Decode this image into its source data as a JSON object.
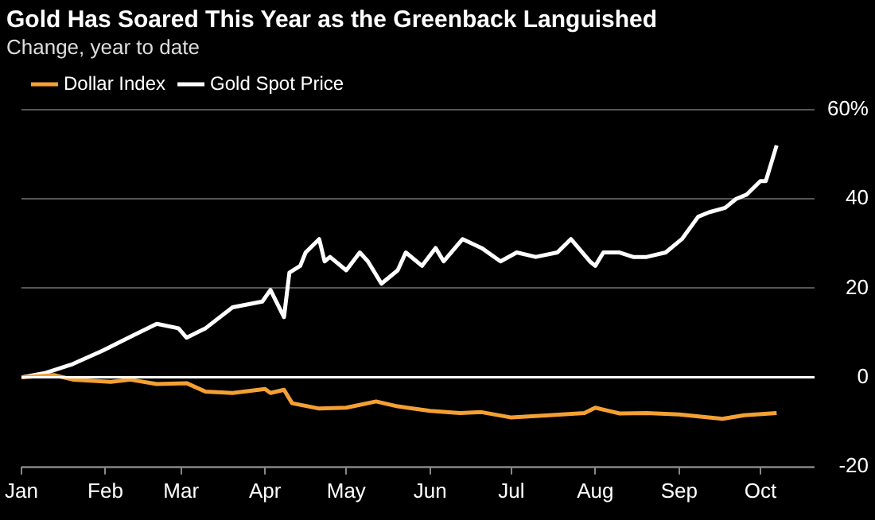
{
  "chart_data": {
    "type": "line",
    "title": "Gold Has Soared This Year as the Greenback Languished",
    "subtitle": "Change, year to date",
    "xlim": [
      "--01-01",
      "--10-21"
    ],
    "xticks": [
      {
        "value": "--01-01",
        "label": "Jan"
      },
      {
        "value": "--02-01",
        "label": "Feb"
      },
      {
        "value": "--03-01",
        "label": "Mar"
      },
      {
        "value": "--04-01",
        "label": "Apr"
      },
      {
        "value": "--05-01",
        "label": "May"
      },
      {
        "value": "--06-01",
        "label": "Jun"
      },
      {
        "value": "--07-01",
        "label": "Jul"
      },
      {
        "value": "--08-01",
        "label": "Aug"
      },
      {
        "value": "--09-01",
        "label": "Sep"
      },
      {
        "value": "--10-01",
        "label": "Oct"
      }
    ],
    "ylim": [
      -20,
      60
    ],
    "yticks": [
      -20,
      0,
      20,
      40,
      {
        "value": 60,
        "label": "60%"
      }
    ],
    "grid": "y",
    "legend": "top left",
    "marker": "none",
    "line_style": "solid",
    "ref_lines": [
      {
        "axis": "y",
        "value": 0,
        "color": "#ffffff"
      }
    ],
    "series": [
      {
        "name": "Dollar Index",
        "color": "#f5a033",
        "x": [
          "--01-01",
          "--01-13",
          "--01-20",
          "--02-03",
          "--02-10",
          "--02-20",
          "--03-03",
          "--03-10",
          "--03-20",
          "--04-01",
          "--04-03",
          "--04-08",
          "--04-11",
          "--04-21",
          "--05-01",
          "--05-12",
          "--05-20",
          "--06-01",
          "--06-12",
          "--06-20",
          "--07-01",
          "--07-15",
          "--07-28",
          "--08-01",
          "--08-10",
          "--08-20",
          "--09-01",
          "--09-17",
          "--09-25",
          "--10-07"
        ],
        "values": [
          0,
          0.5,
          -0.5,
          -1,
          -0.5,
          -1.5,
          -1.3,
          -3.2,
          -3.5,
          -2.6,
          -3.5,
          -2.8,
          -5.8,
          -7,
          -6.8,
          -5.4,
          -6.5,
          -7.5,
          -8,
          -7.8,
          -9,
          -8.5,
          -8,
          -6.8,
          -8.1,
          -8,
          -8.3,
          -9.3,
          -8.5,
          -8
        ]
      },
      {
        "name": "Gold Spot Price",
        "color": "#ffffff",
        "x": [
          "--01-01",
          "--01-10",
          "--01-20",
          "--01-31",
          "--02-10",
          "--02-20",
          "--02-28",
          "--03-03",
          "--03-10",
          "--03-20",
          "--03-31",
          "--04-03",
          "--04-08",
          "--04-10",
          "--04-14",
          "--04-16",
          "--04-21",
          "--04-23",
          "--04-25",
          "--05-01",
          "--05-06",
          "--05-09",
          "--05-14",
          "--05-20",
          "--05-23",
          "--05-29",
          "--06-03",
          "--06-06",
          "--06-13",
          "--06-20",
          "--06-27",
          "--07-03",
          "--07-10",
          "--07-18",
          "--07-23",
          "--07-30",
          "--08-01",
          "--08-04",
          "--08-10",
          "--08-15",
          "--08-20",
          "--08-27",
          "--09-02",
          "--09-08",
          "--09-12",
          "--09-18",
          "--09-22",
          "--09-26",
          "--10-01",
          "--10-03",
          "--10-07"
        ],
        "values": [
          0,
          1,
          3,
          6,
          9,
          12,
          11,
          8.9,
          11,
          15.7,
          17,
          19.6,
          13.5,
          23.5,
          25,
          28,
          31,
          26,
          27,
          24,
          28,
          26,
          21,
          24,
          28,
          25,
          29,
          26,
          31,
          29,
          26,
          28,
          27,
          28,
          31,
          26,
          25,
          28,
          28,
          27,
          27,
          28,
          31,
          36,
          37,
          38,
          40,
          41,
          44,
          44,
          52
        ]
      }
    ]
  }
}
